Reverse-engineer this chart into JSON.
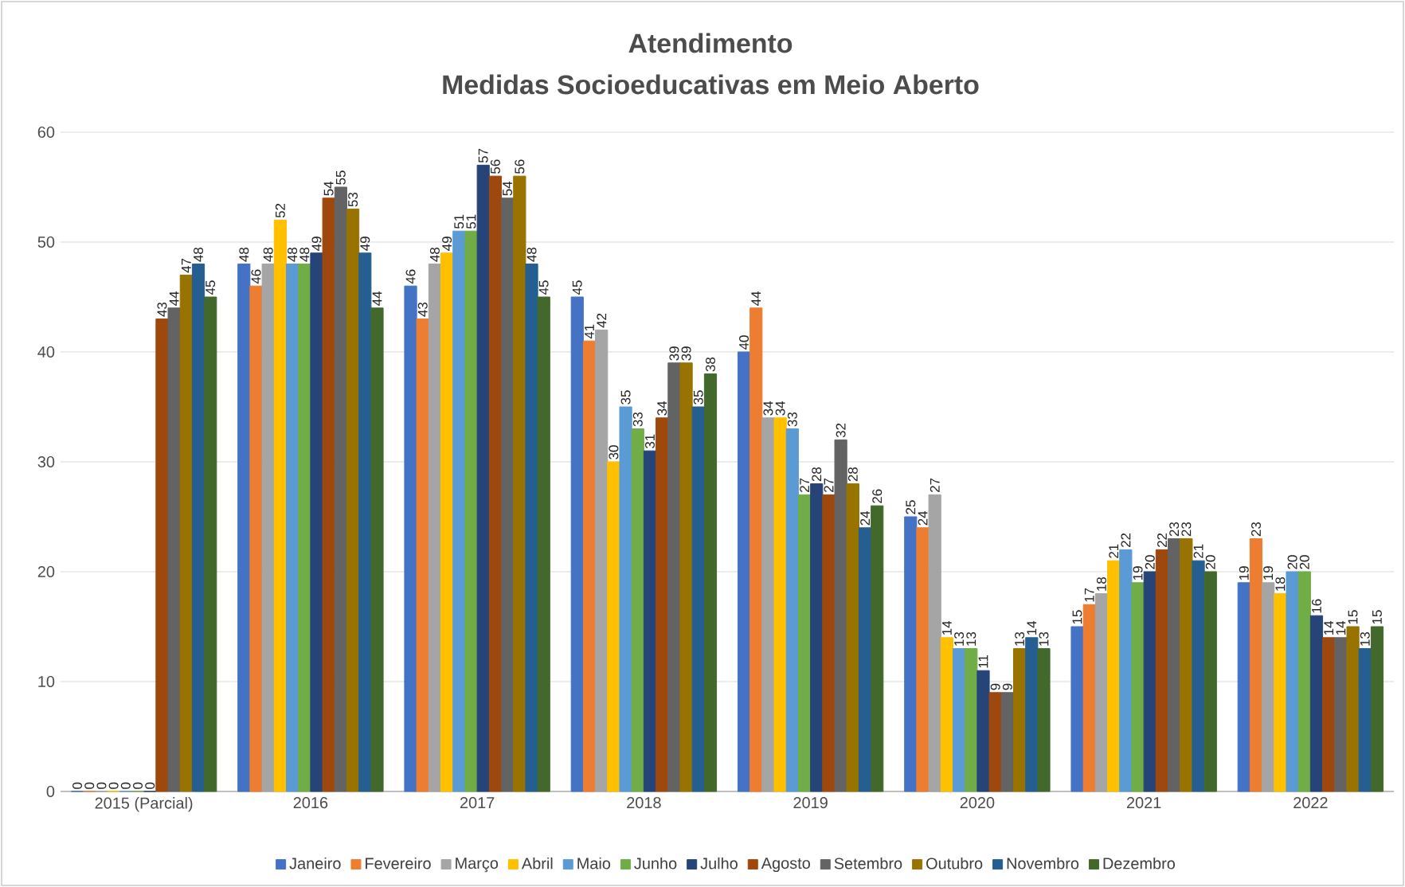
{
  "chart_data": {
    "type": "bar",
    "title": "Atendimento",
    "subtitle": "Medidas Socioeducativas em Meio Aberto",
    "categories": [
      "2015 (Parcial)",
      "2016",
      "2017",
      "2018",
      "2019",
      "2020",
      "2021",
      "2022"
    ],
    "series": [
      {
        "name": "Janeiro",
        "color": "#4472c4",
        "values": [
          0,
          48,
          46,
          45,
          40,
          25,
          15,
          19
        ]
      },
      {
        "name": "Fevereiro",
        "color": "#ed7d31",
        "values": [
          0,
          46,
          43,
          41,
          44,
          24,
          17,
          23
        ]
      },
      {
        "name": "Março",
        "color": "#a5a5a5",
        "values": [
          0,
          48,
          48,
          42,
          34,
          27,
          18,
          19
        ]
      },
      {
        "name": "Abril",
        "color": "#ffc000",
        "values": [
          0,
          52,
          49,
          30,
          34,
          14,
          21,
          18
        ]
      },
      {
        "name": "Maio",
        "color": "#5b9bd5",
        "values": [
          0,
          48,
          51,
          35,
          33,
          13,
          22,
          20
        ]
      },
      {
        "name": "Junho",
        "color": "#70ad47",
        "values": [
          0,
          48,
          51,
          33,
          27,
          13,
          19,
          20
        ]
      },
      {
        "name": "Julho",
        "color": "#264478",
        "values": [
          0,
          49,
          57,
          31,
          28,
          11,
          20,
          16
        ]
      },
      {
        "name": "Agosto",
        "color": "#9e480e",
        "values": [
          43,
          54,
          56,
          34,
          27,
          9,
          22,
          14
        ]
      },
      {
        "name": "Setembro",
        "color": "#636363",
        "values": [
          44,
          55,
          54,
          39,
          32,
          9,
          23,
          14
        ]
      },
      {
        "name": "Outubro",
        "color": "#997300",
        "values": [
          47,
          53,
          56,
          39,
          28,
          13,
          23,
          15
        ]
      },
      {
        "name": "Novembro",
        "color": "#255e91",
        "values": [
          48,
          49,
          48,
          35,
          24,
          14,
          21,
          13
        ]
      },
      {
        "name": "Dezembro",
        "color": "#43682b",
        "values": [
          45,
          44,
          45,
          38,
          26,
          13,
          20,
          15
        ]
      }
    ],
    "ylim": [
      0,
      60
    ],
    "yticks": [
      0,
      10,
      20,
      30,
      40,
      50,
      60
    ],
    "grid": "y",
    "legend": "bottom",
    "data_labels": true
  }
}
